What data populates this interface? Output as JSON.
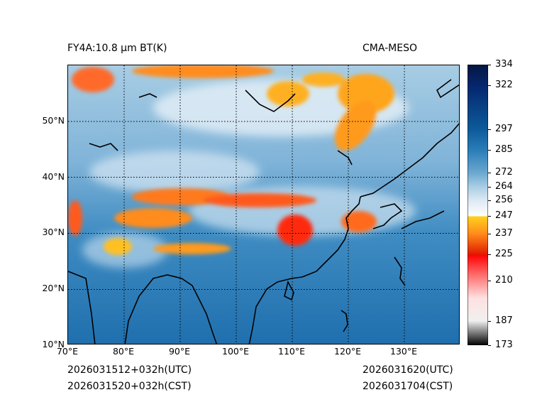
{
  "header": {
    "title_left": "FY4A:10.8 µm BT(K)",
    "title_right": "CMA-MESO"
  },
  "footer": {
    "init_utc": "2026031512+032h(UTC)",
    "init_cst": "2026031520+032h(CST)",
    "valid_utc": "2026031620(UTC)",
    "valid_cst": "2026031704(CST)"
  },
  "map": {
    "lon_range": [
      70,
      140
    ],
    "lat_range": [
      10,
      60
    ],
    "lon_ticks": [
      {
        "value": 70,
        "label": "70°E"
      },
      {
        "value": 80,
        "label": "80°E"
      },
      {
        "value": 90,
        "label": "90°E"
      },
      {
        "value": 100,
        "label": "100°E"
      },
      {
        "value": 110,
        "label": "110°E"
      },
      {
        "value": 120,
        "label": "120°E"
      },
      {
        "value": 130,
        "label": "130°E"
      }
    ],
    "lat_ticks": [
      {
        "value": 10,
        "label": "10°N"
      },
      {
        "value": 20,
        "label": "20°N"
      },
      {
        "value": 30,
        "label": "30°N"
      },
      {
        "value": 40,
        "label": "40°N"
      },
      {
        "value": 50,
        "label": "50°N"
      }
    ],
    "gridlines": "dotted"
  },
  "colorbar": {
    "range": [
      173,
      334
    ],
    "ticks": [
      {
        "value": 334,
        "label": "334"
      },
      {
        "value": 322,
        "label": "322"
      },
      {
        "value": 297,
        "label": "297"
      },
      {
        "value": 285,
        "label": "285"
      },
      {
        "value": 272,
        "label": "272"
      },
      {
        "value": 264,
        "label": "264"
      },
      {
        "value": 256,
        "label": "256"
      },
      {
        "value": 247,
        "label": "247"
      },
      {
        "value": 237,
        "label": "237"
      },
      {
        "value": 225,
        "label": "225"
      },
      {
        "value": 210,
        "label": "210"
      },
      {
        "value": 187,
        "label": "187"
      },
      {
        "value": 173,
        "label": "173"
      }
    ],
    "stops": [
      {
        "value": 173,
        "color": "#000000"
      },
      {
        "value": 187,
        "color": "#f0f0f0"
      },
      {
        "value": 200,
        "color": "#ffe0e0"
      },
      {
        "value": 213,
        "color": "#ff7070"
      },
      {
        "value": 225,
        "color": "#ff0000"
      },
      {
        "value": 225,
        "color": "#e01a00"
      },
      {
        "value": 237,
        "color": "#ff8c1a"
      },
      {
        "value": 247,
        "color": "#ffd21f"
      },
      {
        "value": 247,
        "color": "#ffffff"
      },
      {
        "value": 256,
        "color": "#dde9f3"
      },
      {
        "value": 264,
        "color": "#a9cde3"
      },
      {
        "value": 272,
        "color": "#6aa8cf"
      },
      {
        "value": 285,
        "color": "#2a7db8"
      },
      {
        "value": 297,
        "color": "#0d5a9a"
      },
      {
        "value": 322,
        "color": "#05266e"
      },
      {
        "value": 334,
        "color": "#041640"
      }
    ]
  }
}
